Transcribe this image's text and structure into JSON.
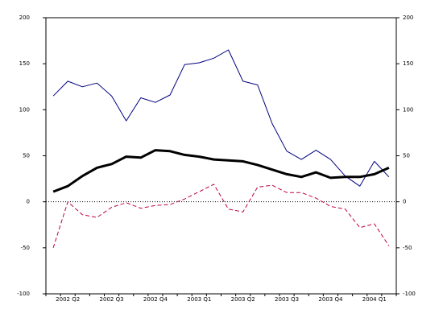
{
  "chart_data": {
    "type": "line",
    "categories": [
      null,
      "2002 Q2",
      null,
      null,
      "2002 Q3",
      null,
      null,
      "2002 Q4",
      null,
      null,
      "2003 Q1",
      null,
      null,
      "2003 Q2",
      null,
      null,
      "2003 Q3",
      null,
      null,
      "2003 Q4",
      null,
      null,
      "2004 Q1",
      null
    ],
    "series": [
      {
        "color": "#000080",
        "width": 1,
        "dash": false,
        "values": [
          115,
          131,
          125,
          129,
          115,
          88,
          113,
          108,
          116,
          149,
          151,
          156,
          165,
          131,
          127,
          85,
          55,
          46,
          56,
          46,
          28,
          17,
          44,
          27
        ]
      },
      {
        "color": "#000000",
        "width": 3,
        "dash": false,
        "values": [
          11,
          17,
          28,
          37,
          41,
          49,
          48,
          56,
          55,
          51,
          49,
          46,
          45,
          44,
          40,
          35,
          30,
          27,
          32,
          26,
          27,
          27,
          30,
          37
        ]
      },
      {
        "color": "#c00040",
        "width": 1,
        "dash": true,
        "values": [
          -50,
          0,
          -14,
          -17,
          -6,
          -1,
          -7,
          -4,
          -3,
          3,
          11,
          19,
          -8,
          -11,
          16,
          18,
          10,
          10,
          4,
          -5,
          -8,
          -28,
          -24,
          -48
        ]
      }
    ],
    "ylim": [
      -100,
      200
    ],
    "yticks": [
      -100,
      -50,
      0,
      50,
      100,
      150,
      200
    ],
    "y2lim": [
      -100,
      200
    ],
    "y2ticks": [
      -100,
      -50,
      0,
      50,
      100,
      150,
      200
    ],
    "zero_line": true,
    "grid": false
  }
}
